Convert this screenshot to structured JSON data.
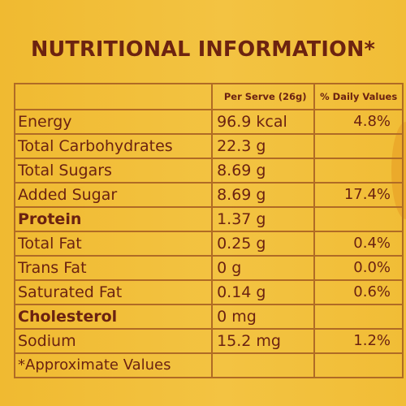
{
  "title": "NUTRITIONAL INFORMATION*",
  "headers": {
    "nutrient": "",
    "per_serve": "Per Serve (26g)",
    "daily_values": "% Daily Values"
  },
  "rows": [
    {
      "name": "Energy",
      "per_serve": "96.9 kcal",
      "daily": "4.8%"
    },
    {
      "name": "Total Carbohydrates",
      "per_serve": "22.3 g",
      "daily": ""
    },
    {
      "name": "Total Sugars",
      "per_serve": "8.69 g",
      "daily": ""
    },
    {
      "name": "Added Sugar",
      "per_serve": "8.69 g",
      "daily": "17.4%"
    },
    {
      "name": "Protein",
      "per_serve": "1.37 g",
      "daily": ""
    },
    {
      "name": "Total Fat",
      "per_serve": "0.25 g",
      "daily": "0.4%"
    },
    {
      "name": "Trans Fat",
      "per_serve": "0 g",
      "daily": "0.0%"
    },
    {
      "name": "Saturated Fat",
      "per_serve": "0.14 g",
      "daily": "0.6%"
    },
    {
      "name": "Cholesterol",
      "per_serve": "0 mg",
      "daily": ""
    },
    {
      "name": "Sodium",
      "per_serve": "15.2 mg",
      "daily": "1.2%"
    }
  ],
  "footnote": "*Approximate Values"
}
